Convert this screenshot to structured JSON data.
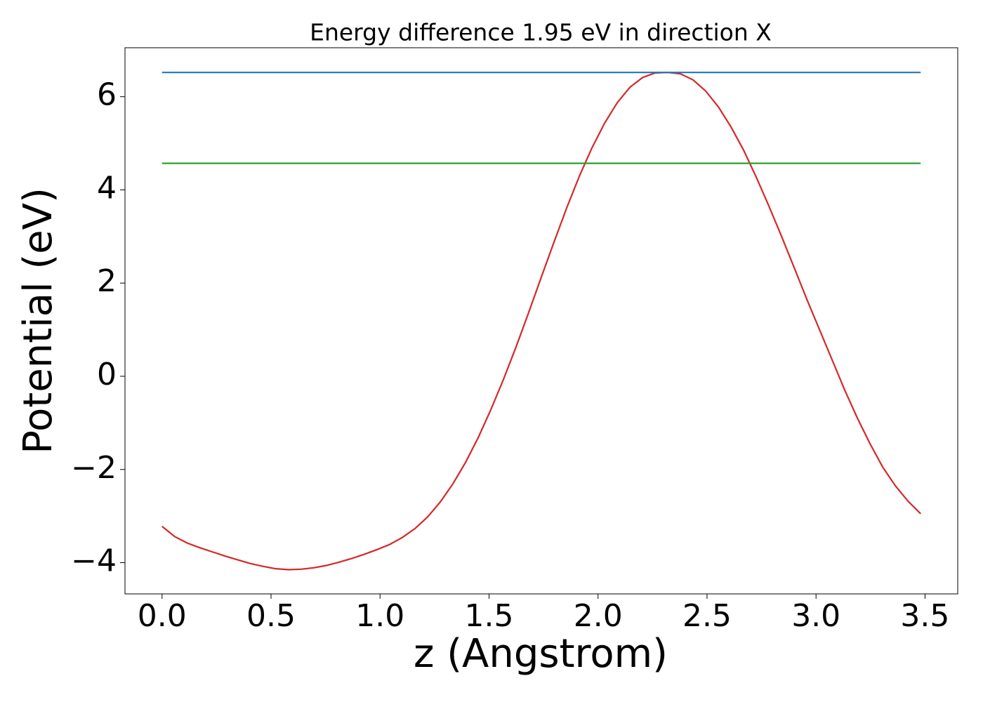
{
  "chart_data": {
    "type": "line",
    "title": "Energy difference 1.95 eV in direction X",
    "xlabel": "z (Angstrom)",
    "ylabel": "Potential (eV)",
    "xlim": [
      -0.17,
      3.65
    ],
    "ylim": [
      -4.67,
      7.05
    ],
    "xticks": [
      {
        "value": 0,
        "label": "0.0"
      },
      0.5,
      {
        "value": 1,
        "label": "1.0"
      },
      1.5,
      {
        "value": 2,
        "label": "2.0"
      },
      2.5,
      {
        "value": 3,
        "label": "3.0"
      },
      3.5
    ],
    "yticks": [
      {
        "value": -4,
        "label": "−4"
      },
      {
        "value": -2,
        "label": "−2"
      },
      0,
      2,
      4,
      6
    ],
    "series": [
      {
        "color": "#d62728",
        "x": [
          0,
          0.058,
          0.116,
          0.174,
          0.232,
          0.29,
          0.348,
          0.406,
          0.464,
          0.522,
          0.58,
          0.638,
          0.696,
          0.754,
          0.812,
          0.87,
          0.928,
          0.986,
          1.044,
          1.102,
          1.16,
          1.218,
          1.276,
          1.334,
          1.392,
          1.45,
          1.508,
          1.566,
          1.624,
          1.682,
          1.74,
          1.798,
          1.856,
          1.914,
          1.972,
          2.03,
          2.088,
          2.146,
          2.204,
          2.262,
          2.32,
          2.378,
          2.436,
          2.494,
          2.552,
          2.61,
          2.668,
          2.726,
          2.784,
          2.842,
          2.9,
          2.958,
          3.016,
          3.074,
          3.132,
          3.19,
          3.248,
          3.306,
          3.364,
          3.422,
          3.48
        ],
        "values": [
          -3.22,
          -3.44,
          -3.58,
          -3.68,
          -3.77,
          -3.86,
          -3.94,
          -4.02,
          -4.08,
          -4.13,
          -4.15,
          -4.14,
          -4.11,
          -4.06,
          -3.99,
          -3.91,
          -3.82,
          -3.72,
          -3.61,
          -3.46,
          -3.27,
          -3.02,
          -2.7,
          -2.31,
          -1.85,
          -1.32,
          -0.72,
          -0.07,
          0.63,
          1.37,
          2.13,
          2.88,
          3.61,
          4.29,
          4.9,
          5.43,
          5.87,
          6.2,
          6.41,
          6.51,
          6.52,
          6.49,
          6.36,
          6.12,
          5.78,
          5.35,
          4.85,
          4.27,
          3.65,
          3.0,
          2.33,
          1.65,
          1.0,
          0.35,
          -0.3,
          -0.9,
          -1.45,
          -1.95,
          -2.35,
          -2.68,
          -2.95
        ]
      },
      {
        "color": "#1f77b4",
        "x": [
          0,
          3.48
        ],
        "values": [
          6.52,
          6.52
        ]
      },
      {
        "color": "#2ca02c",
        "x": [
          0,
          3.48
        ],
        "values": [
          4.57,
          4.57
        ]
      }
    ]
  }
}
